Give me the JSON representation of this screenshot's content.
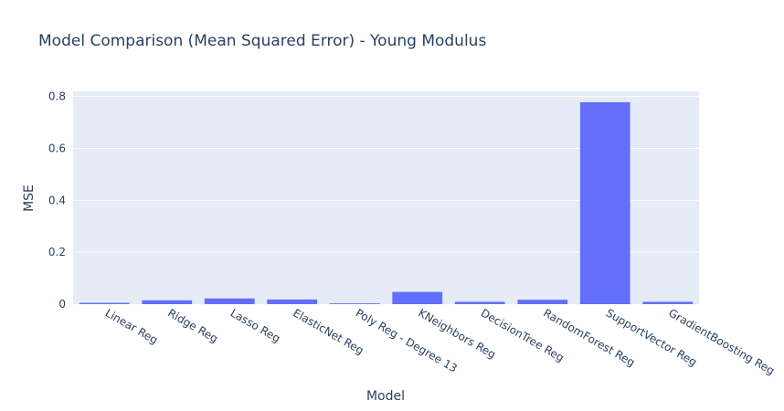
{
  "chart_data": {
    "type": "bar",
    "title": "Model Comparison (Mean Squared Error) - Young Modulus",
    "xlabel": "Model",
    "ylabel": "MSE",
    "categories": [
      "Linear Reg",
      "Ridge Reg",
      "Lasso Reg",
      "ElasticNet Reg",
      "Poly Reg - Degree 13",
      "KNeighbors Reg",
      "DecisionTree Reg",
      "RandomForest Reg",
      "SupportVector Reg",
      "GradientBoosting Reg"
    ],
    "values": [
      0.005,
      0.015,
      0.022,
      0.018,
      0.003,
      0.047,
      0.009,
      0.017,
      0.778,
      0.009
    ],
    "ylim": [
      0,
      0.82
    ],
    "yticks": [
      0,
      0.2,
      0.4,
      0.6,
      0.8
    ],
    "ytick_labels": [
      "0",
      "0.2",
      "0.4",
      "0.6",
      "0.8"
    ],
    "grid": true,
    "bar_color": "#636efa",
    "plot_bg": "#e5ecf6",
    "grid_color": "#ffffff",
    "text_color": "#2a3f5f"
  }
}
